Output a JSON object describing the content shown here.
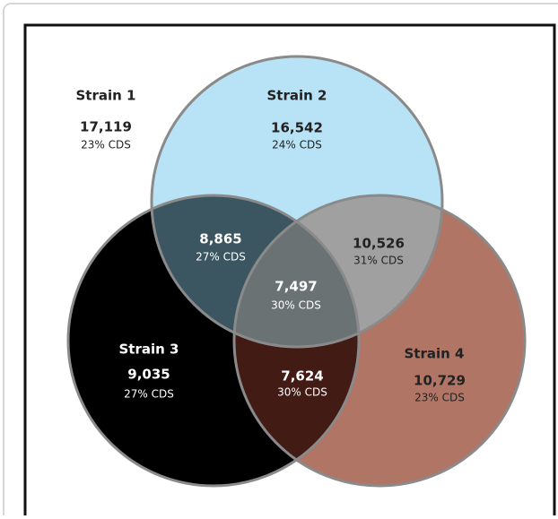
{
  "regions": [
    {
      "label": "Strain 1",
      "count": "17,119",
      "cds": "23% CDS"
    },
    {
      "label": "Strain 2",
      "count": "16,542",
      "cds": "24% CDS"
    },
    {
      "label": "Strain 3",
      "count": "9,035",
      "cds": "27% CDS"
    },
    {
      "label": "Strain 4",
      "count": "10,729",
      "cds": "23% CDS"
    },
    {
      "count": "8,865",
      "cds": "27% CDS"
    },
    {
      "count": "10,526",
      "cds": "31% CDS"
    },
    {
      "count": "7,624",
      "cds": "30% CDS"
    },
    {
      "count": "7,497",
      "cds": "30% CDS"
    }
  ]
}
